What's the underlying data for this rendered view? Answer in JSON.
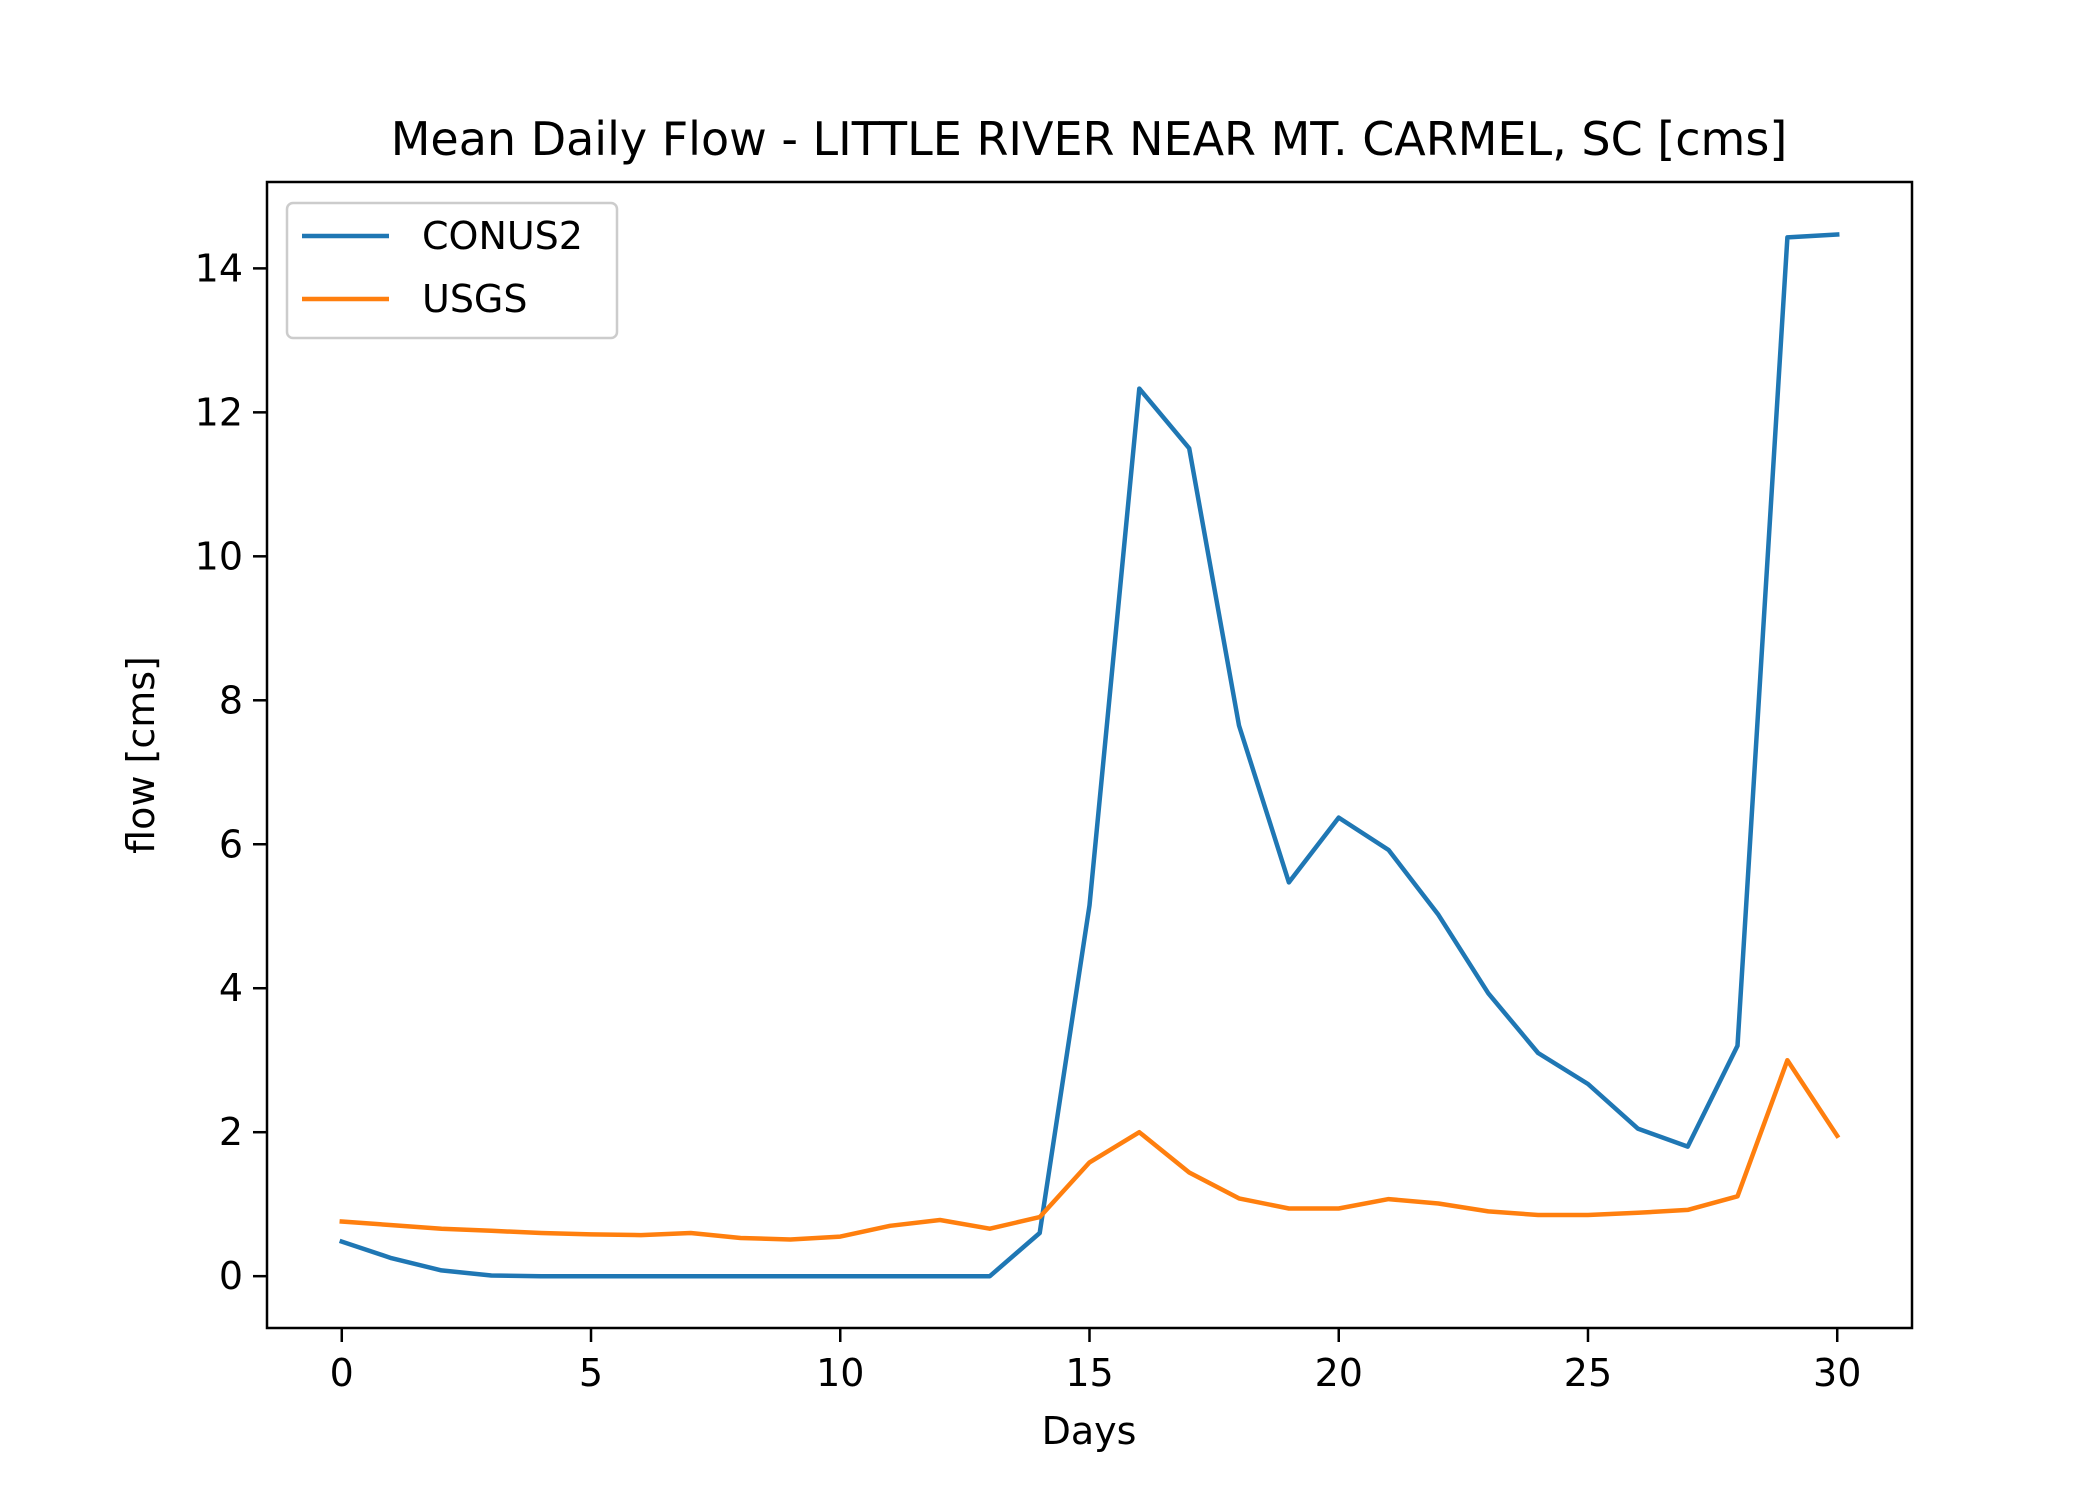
{
  "chart_data": {
    "type": "line",
    "title": "Mean Daily Flow - LITTLE RIVER NEAR MT. CARMEL, SC [cms]",
    "xlabel": "Days",
    "ylabel": "flow [cms]",
    "xlim": [
      -1.5,
      31.5
    ],
    "ylim": [
      -0.72,
      15.2
    ],
    "xticks": [
      0,
      5,
      10,
      15,
      20,
      25,
      30
    ],
    "yticks": [
      0,
      2,
      4,
      6,
      8,
      10,
      12,
      14
    ],
    "grid": false,
    "legend_position": "top-left",
    "x": [
      0,
      1,
      2,
      3,
      4,
      5,
      6,
      7,
      8,
      9,
      10,
      11,
      12,
      13,
      14,
      15,
      16,
      17,
      18,
      19,
      20,
      21,
      22,
      23,
      24,
      25,
      26,
      27,
      28,
      29,
      30
    ],
    "series": [
      {
        "name": "CONUS2",
        "color": "#1f77b4",
        "values": [
          0.48,
          0.25,
          0.08,
          0.01,
          0.0,
          0.0,
          0.0,
          0.0,
          0.0,
          0.0,
          0.0,
          0.0,
          0.0,
          0.0,
          0.6,
          5.15,
          12.33,
          11.5,
          7.65,
          5.47,
          6.37,
          5.92,
          5.02,
          3.93,
          3.1,
          2.67,
          2.05,
          1.8,
          3.2,
          14.43,
          14.47
        ]
      },
      {
        "name": "USGS",
        "color": "#ff7f0e",
        "values": [
          0.76,
          0.71,
          0.66,
          0.63,
          0.6,
          0.58,
          0.57,
          0.6,
          0.53,
          0.51,
          0.55,
          0.7,
          0.78,
          0.66,
          0.82,
          1.58,
          2.0,
          1.44,
          1.08,
          0.94,
          0.94,
          1.07,
          1.01,
          0.9,
          0.85,
          0.85,
          0.88,
          0.92,
          1.11,
          3.0,
          1.95
        ]
      }
    ]
  }
}
